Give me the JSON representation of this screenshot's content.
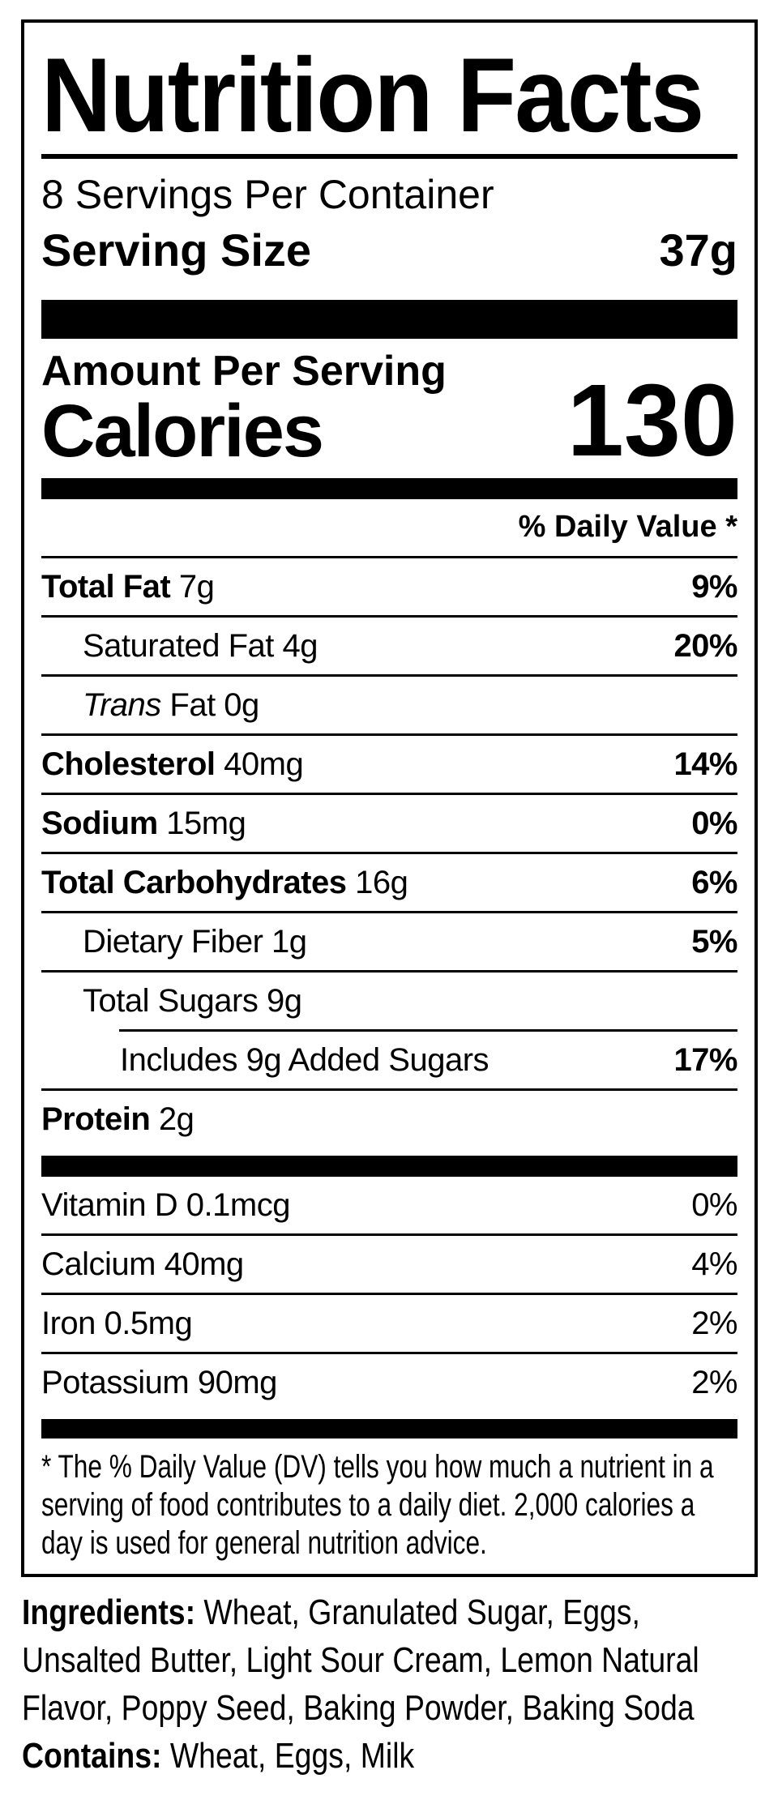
{
  "colors": {
    "ink": "#000000",
    "paper": "#ffffff"
  },
  "label": {
    "title": "Nutrition Facts",
    "servings_per_container": "8 Servings Per Container",
    "serving_size_label": "Serving Size",
    "serving_size_value": "37g",
    "amount_per_serving": "Amount Per Serving",
    "calories_label": "Calories",
    "calories_value": "130",
    "daily_value_header": "% Daily Value *",
    "rows": [
      {
        "bold": "Total Fat",
        "rest": " 7g",
        "dv": "9%"
      },
      {
        "bold": "",
        "rest": "Saturated Fat 4g",
        "dv": "20%"
      },
      {
        "bold": "",
        "italic": "Trans",
        "rest": " Fat 0g",
        "dv": ""
      },
      {
        "bold": "Cholesterol",
        "rest": " 40mg",
        "dv": "14%"
      },
      {
        "bold": "Sodium",
        "rest": " 15mg",
        "dv": "0%"
      },
      {
        "bold": "Total Carbohydrates",
        "rest": " 16g",
        "dv": "6%"
      },
      {
        "bold": "",
        "rest": "Dietary Fiber 1g",
        "dv": "5%"
      },
      {
        "bold": "",
        "rest": "Total Sugars 9g",
        "dv": ""
      },
      {
        "bold": "",
        "rest": "Includes 9g Added Sugars",
        "dv": "17%"
      },
      {
        "bold": "Protein",
        "rest": " 2g",
        "dv": ""
      }
    ],
    "vitamins": [
      {
        "name": "Vitamin D 0.1mcg",
        "dv": "0%"
      },
      {
        "name": "Calcium 40mg",
        "dv": "4%"
      },
      {
        "name": "Iron 0.5mg",
        "dv": "2%"
      },
      {
        "name": "Potassium 90mg",
        "dv": "2%"
      }
    ],
    "footnote_line1": "* The % Daily Value (DV) tells you how much a nutrient in a",
    "footnote_line2": "serving of food contributes to a daily diet. 2,000 calories a",
    "footnote_line3": "day is used for general nutrition advice."
  },
  "ingredients": {
    "label": "Ingredients:",
    "line1": " Wheat, Granulated Sugar, Eggs,",
    "line2": "Unsalted Butter, Light Sour Cream, Lemon Natural",
    "line3": "Flavor, Poppy Seed, Baking Powder, Baking Soda",
    "contains_label": "Contains:",
    "contains_rest": " Wheat, Eggs, Milk"
  }
}
